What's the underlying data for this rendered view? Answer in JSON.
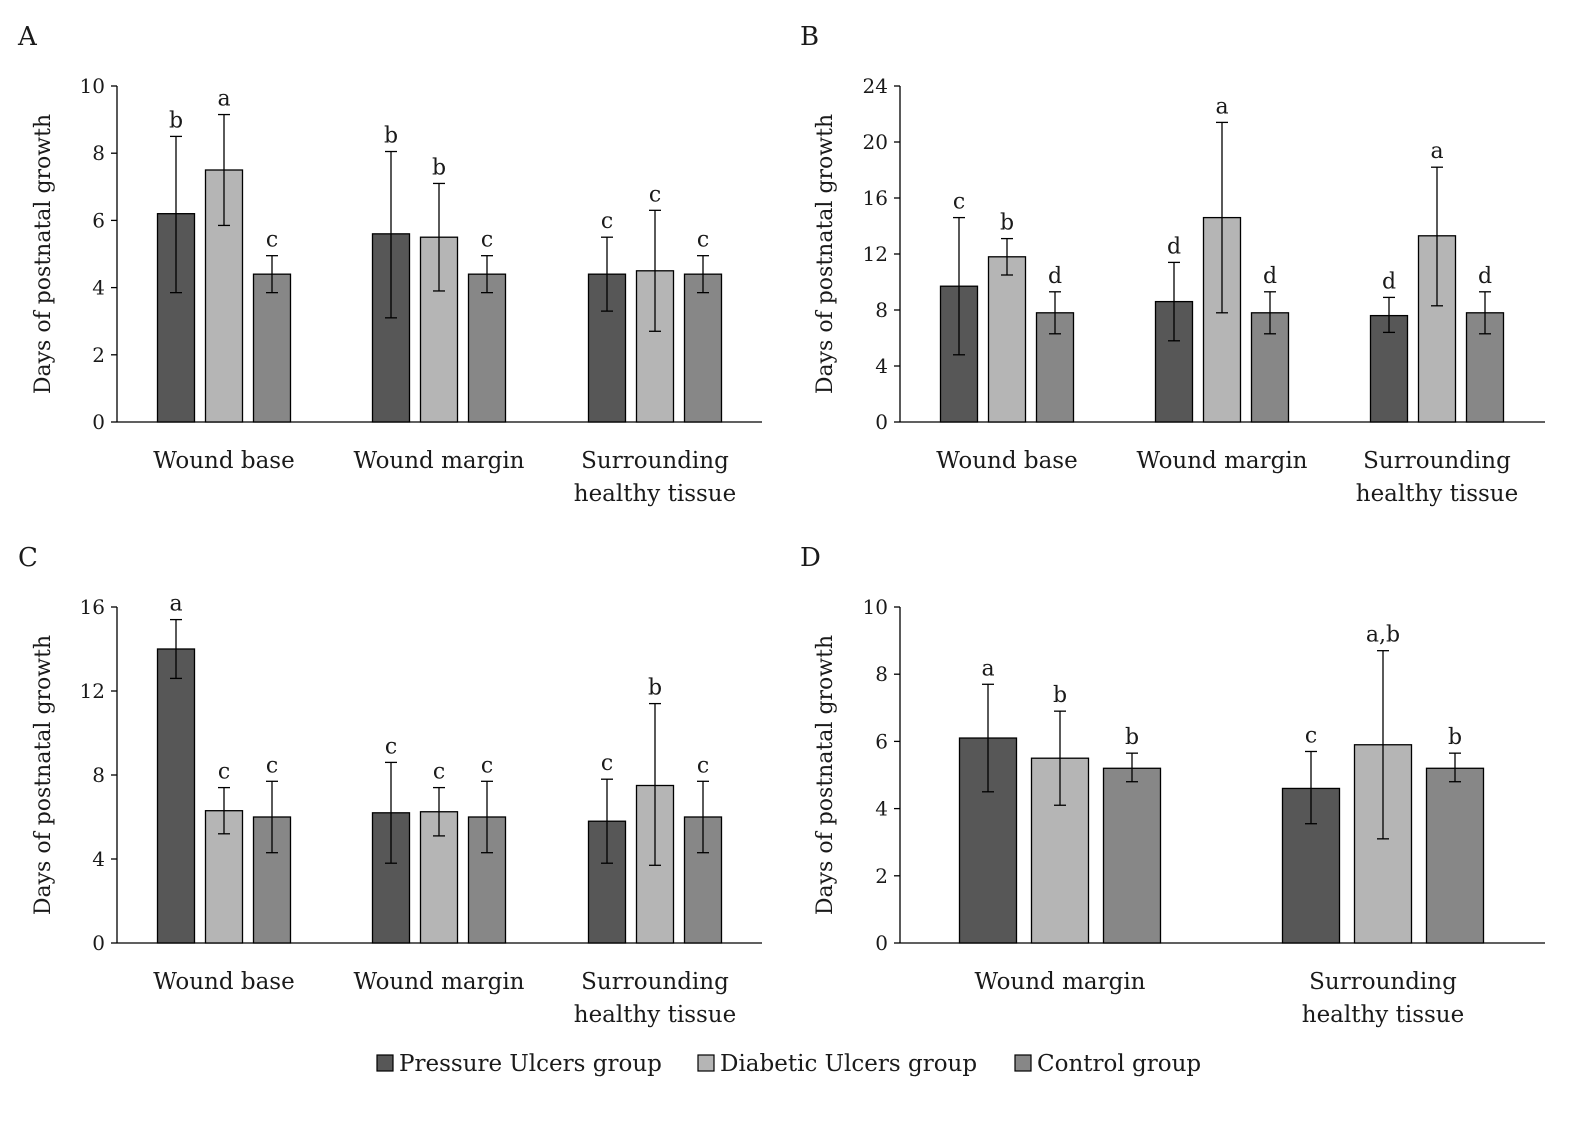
{
  "chart_data": [
    {
      "panel_label": "A",
      "type": "bar",
      "ylabel": "Days of postnatal growth",
      "ylim": [
        0,
        10
      ],
      "yticks": [
        0,
        2,
        4,
        6,
        8,
        10
      ],
      "categories": [
        [
          "Wound base"
        ],
        [
          "Wound margin"
        ],
        [
          "Surrounding",
          "healthy tissue"
        ]
      ],
      "series": [
        {
          "name": "Pressure Ulcers group",
          "values": [
            6.2,
            5.6,
            4.4
          ],
          "err_low": [
            3.85,
            3.1,
            3.3
          ],
          "err_high": [
            8.5,
            8.05,
            5.5
          ],
          "letters": [
            "b",
            "b",
            "c"
          ]
        },
        {
          "name": "Diabetic Ulcers group",
          "values": [
            7.5,
            5.5,
            4.5
          ],
          "err_low": [
            5.85,
            3.9,
            2.7
          ],
          "err_high": [
            9.15,
            7.1,
            6.3
          ],
          "letters": [
            "a",
            "b",
            "c"
          ]
        },
        {
          "name": "Control group",
          "values": [
            4.4,
            4.4,
            4.4
          ],
          "err_low": [
            3.85,
            3.85,
            3.85
          ],
          "err_high": [
            4.95,
            4.95,
            4.95
          ],
          "letters": [
            "c",
            "c",
            "c"
          ]
        }
      ]
    },
    {
      "panel_label": "B",
      "type": "bar",
      "ylabel": "Days of postnatal growth",
      "ylim": [
        0,
        24
      ],
      "yticks": [
        0,
        4,
        8,
        12,
        16,
        20,
        24
      ],
      "categories": [
        [
          "Wound base"
        ],
        [
          "Wound margin"
        ],
        [
          "Surrounding",
          "healthy tissue"
        ]
      ],
      "series": [
        {
          "name": "Pressure Ulcers group",
          "values": [
            9.7,
            8.6,
            7.6
          ],
          "err_low": [
            4.8,
            5.8,
            6.4
          ],
          "err_high": [
            14.6,
            11.4,
            8.9
          ],
          "letters": [
            "c",
            "d",
            "d"
          ]
        },
        {
          "name": "Diabetic Ulcers group",
          "values": [
            11.8,
            14.6,
            13.3
          ],
          "err_low": [
            10.5,
            7.8,
            8.3
          ],
          "err_high": [
            13.1,
            21.4,
            18.2
          ],
          "letters": [
            "b",
            "a",
            "a"
          ]
        },
        {
          "name": "Control group",
          "values": [
            7.8,
            7.8,
            7.8
          ],
          "err_low": [
            6.3,
            6.3,
            6.3
          ],
          "err_high": [
            9.3,
            9.3,
            9.3
          ],
          "letters": [
            "d",
            "d",
            "d"
          ]
        }
      ]
    },
    {
      "panel_label": "C",
      "type": "bar",
      "ylabel": "Days of postnatal growth",
      "ylim": [
        0,
        16
      ],
      "yticks": [
        0,
        4,
        8,
        12,
        16
      ],
      "categories": [
        [
          "Wound base"
        ],
        [
          "Wound margin"
        ],
        [
          "Surrounding",
          "healthy tissue"
        ]
      ],
      "series": [
        {
          "name": "Pressure Ulcers group",
          "values": [
            14.0,
            6.2,
            5.8
          ],
          "err_low": [
            12.6,
            3.8,
            3.8
          ],
          "err_high": [
            15.4,
            8.6,
            7.8
          ],
          "letters": [
            "a",
            "c",
            "c"
          ]
        },
        {
          "name": "Diabetic Ulcers group",
          "values": [
            6.3,
            6.25,
            7.5
          ],
          "err_low": [
            5.2,
            5.1,
            3.7
          ],
          "err_high": [
            7.4,
            7.4,
            11.4
          ],
          "letters": [
            "c",
            "c",
            "b"
          ]
        },
        {
          "name": "Control group",
          "values": [
            6.0,
            6.0,
            6.0
          ],
          "err_low": [
            4.3,
            4.3,
            4.3
          ],
          "err_high": [
            7.7,
            7.7,
            7.7
          ],
          "letters": [
            "c",
            "c",
            "c"
          ]
        }
      ]
    },
    {
      "panel_label": "D",
      "type": "bar",
      "ylabel": "Days of postnatal growth",
      "ylim": [
        0,
        10
      ],
      "yticks": [
        0,
        2,
        4,
        6,
        8,
        10
      ],
      "categories": [
        [
          "Wound margin"
        ],
        [
          "Surrounding",
          "healthy tissue"
        ]
      ],
      "series": [
        {
          "name": "Pressure Ulcers group",
          "values": [
            6.1,
            4.6
          ],
          "err_low": [
            4.5,
            3.55
          ],
          "err_high": [
            7.7,
            5.7
          ],
          "letters": [
            "a",
            "c"
          ]
        },
        {
          "name": "Diabetic Ulcers group",
          "values": [
            5.5,
            5.9
          ],
          "err_low": [
            4.1,
            3.1
          ],
          "err_high": [
            6.9,
            8.7
          ],
          "letters": [
            "b",
            "a,b"
          ]
        },
        {
          "name": "Control group",
          "values": [
            5.2,
            5.2
          ],
          "err_low": [
            4.8,
            4.8
          ],
          "err_high": [
            5.65,
            5.65
          ],
          "letters": [
            "b",
            "b"
          ]
        }
      ]
    }
  ],
  "series_colors": [
    "#575757",
    "#b5b5b5",
    "#878787"
  ],
  "legend": {
    "position": "bottom-center",
    "items": [
      "Pressure Ulcers group",
      "Diabetic Ulcers group",
      "Control group"
    ]
  }
}
